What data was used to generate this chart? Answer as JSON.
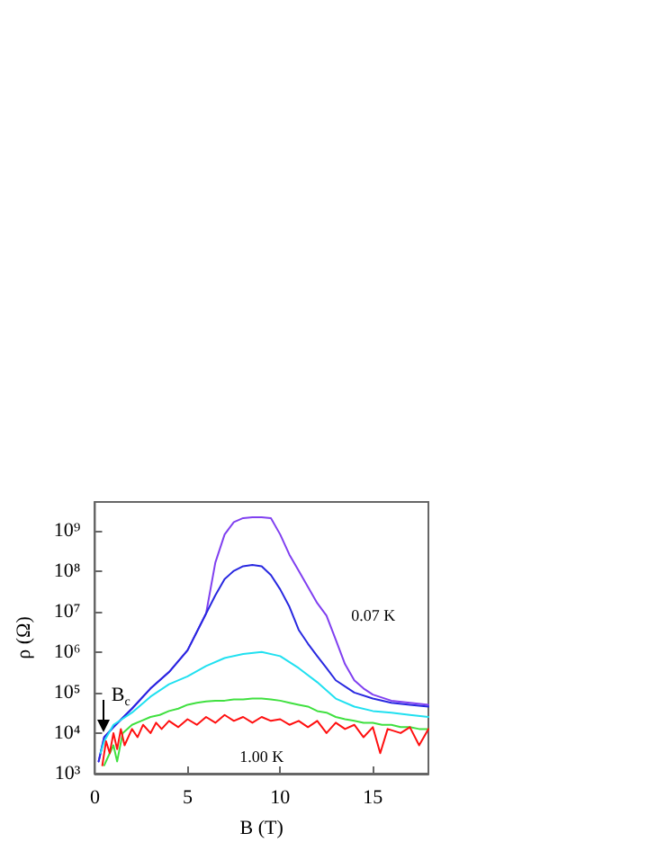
{
  "chart_data": {
    "type": "line",
    "xlabel": "B (T)",
    "ylabel": "ρ (Ω)",
    "log": "y",
    "xlim": [
      0,
      18
    ],
    "xticks": [
      0,
      5,
      10,
      15
    ],
    "ylim": [
      1000,
      5000000000
    ],
    "yticks": [
      {
        "value": 1000,
        "label": "10³"
      },
      {
        "value": 10000,
        "label": "10⁴"
      },
      {
        "value": 100000,
        "label": "10⁵"
      },
      {
        "value": 1000000,
        "label": "10⁶"
      },
      {
        "value": 10000000,
        "label": "10⁷"
      },
      {
        "value": 100000000,
        "label": "10⁸"
      },
      {
        "value": 1000000000,
        "label": "10⁹"
      }
    ],
    "series": [
      {
        "name": "0.07 K",
        "color": "#8040f0",
        "x": [
          0.2,
          0.5,
          1,
          2,
          3,
          4,
          5,
          6,
          6.5,
          7,
          7.5,
          8,
          8.5,
          9,
          9.5,
          10,
          10.5,
          11,
          11.5,
          12,
          12.5,
          13,
          13.5,
          14,
          14.5,
          15,
          16,
          17,
          18
        ],
        "values": [
          2000,
          7900,
          14000,
          40000,
          126000,
          320000,
          1100000,
          8900000,
          160000000,
          790000000,
          1600000000,
          2000000000,
          2100000000,
          2100000000,
          2000000000,
          790000000,
          250000000,
          100000000,
          40000000,
          16000000,
          7900000,
          2000000,
          500000,
          200000,
          126000,
          89000,
          63000,
          56000,
          50000
        ]
      },
      {
        "color": "#2828e0",
        "x": [
          0.2,
          0.5,
          1,
          2,
          3,
          4,
          5,
          6,
          6.5,
          7,
          7.5,
          8,
          8.5,
          9,
          9.5,
          10,
          10.5,
          11,
          11.5,
          12,
          12.5,
          13,
          14,
          15,
          16,
          17,
          18
        ],
        "values": [
          2000,
          7900,
          14000,
          40000,
          126000,
          320000,
          1100000,
          8900000,
          25000000,
          63000000,
          100000000,
          130000000,
          140000000,
          130000000,
          79000000,
          35000000,
          13000000,
          3500000,
          1600000,
          790000,
          400000,
          200000,
          100000,
          71000,
          56000,
          50000,
          45000
        ]
      },
      {
        "color": "#20e0f0",
        "x": [
          0.3,
          0.5,
          1,
          2,
          3,
          4,
          5,
          6,
          7,
          8,
          9,
          10,
          11,
          12,
          13,
          14,
          15,
          16,
          17,
          18
        ],
        "values": [
          3200,
          6300,
          16000,
          32000,
          79000,
          160000,
          250000,
          450000,
          710000,
          890000,
          1000000,
          790000,
          400000,
          180000,
          71000,
          45000,
          35000,
          32000,
          28000,
          25000
        ]
      },
      {
        "color": "#40e040",
        "x": [
          0.5,
          0.8,
          1,
          1.2,
          1.5,
          2,
          2.5,
          3,
          3.5,
          4,
          4.5,
          5,
          5.5,
          6,
          6.5,
          7,
          7.5,
          8,
          8.5,
          9,
          9.5,
          10,
          10.5,
          11,
          11.5,
          12,
          12.5,
          13,
          13.5,
          14,
          14.5,
          15,
          15.5,
          16,
          16.5,
          17,
          17.5,
          18
        ],
        "values": [
          1600,
          3200,
          5000,
          2000,
          10000,
          16000,
          20000,
          25000,
          28000,
          35000,
          40000,
          50000,
          56000,
          60000,
          63000,
          63000,
          68000,
          68000,
          71000,
          71000,
          68000,
          63000,
          56000,
          50000,
          45000,
          35000,
          32000,
          25000,
          22000,
          20000,
          18000,
          18000,
          16000,
          16000,
          14000,
          14000,
          12600,
          12600
        ]
      },
      {
        "name": "1.00 K",
        "color": "#ff1010",
        "x": [
          0.4,
          0.6,
          0.8,
          1,
          1.2,
          1.4,
          1.6,
          2,
          2.3,
          2.6,
          3,
          3.3,
          3.6,
          4,
          4.5,
          5,
          5.5,
          6,
          6.5,
          7,
          7.5,
          8,
          8.5,
          9,
          9.5,
          10,
          10.5,
          11,
          11.5,
          12,
          12.5,
          13,
          13.5,
          14,
          14.5,
          15,
          15.4,
          15.8,
          16.5,
          17,
          17.5,
          18
        ],
        "values": [
          1600,
          6300,
          3200,
          10000,
          4000,
          12600,
          5000,
          12600,
          7900,
          16000,
          10000,
          18000,
          12600,
          20000,
          14000,
          22000,
          16000,
          25000,
          18000,
          28000,
          20000,
          25000,
          18000,
          25000,
          20000,
          22000,
          16000,
          20000,
          14000,
          20000,
          10000,
          18000,
          12600,
          16000,
          7900,
          14000,
          3200,
          12600,
          10000,
          14000,
          5000,
          12600
        ]
      }
    ],
    "annotations": [
      {
        "text": "B$_{c}$",
        "x": 0.5,
        "y": 10000
      }
    ]
  }
}
